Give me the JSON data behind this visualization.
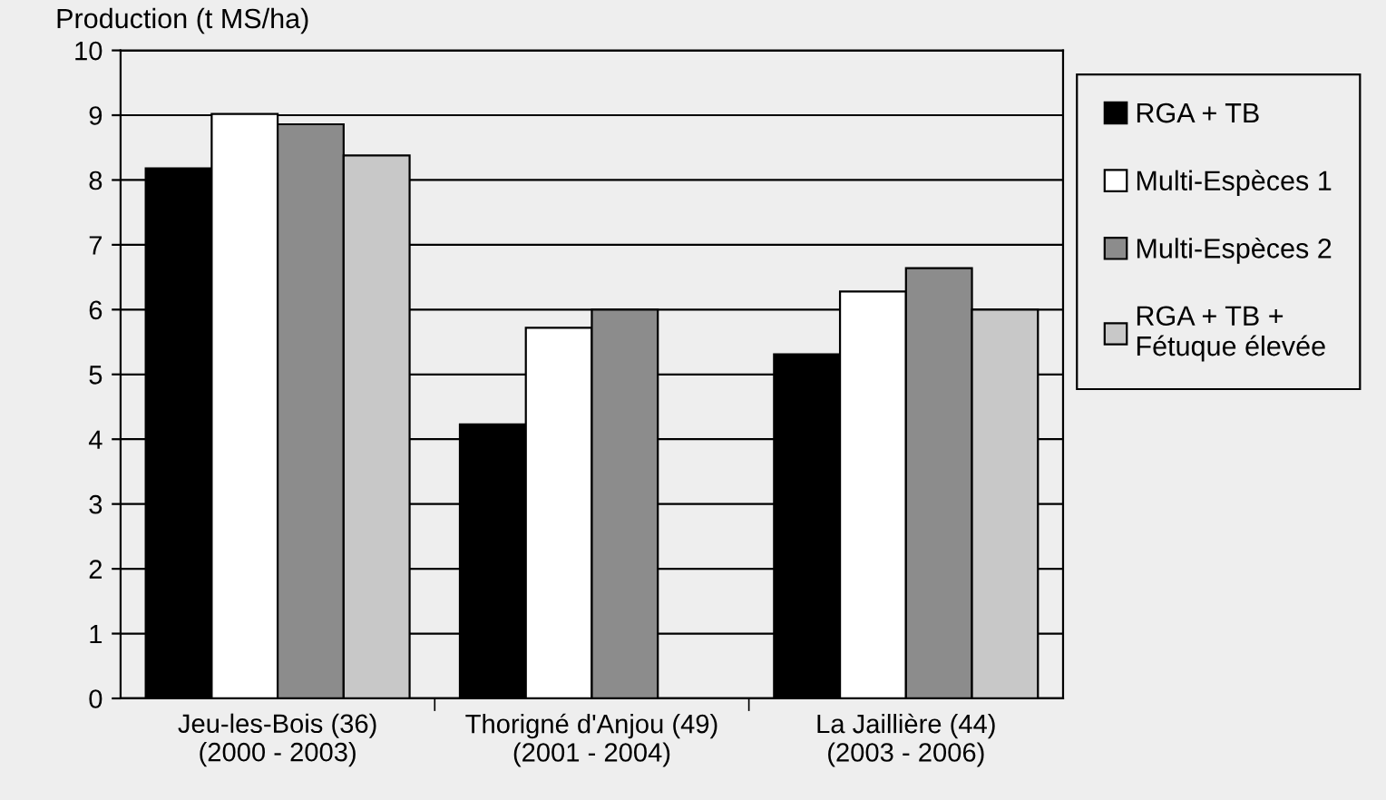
{
  "chart_data": {
    "type": "bar",
    "ylabel": "Production (t MS/ha)",
    "categories": [
      "Jeu-les-Bois (36)\n(2000 - 2003)",
      "Thorigné d'Anjou (49)\n(2001 - 2004)",
      "La Jaillière (44)\n(2003 - 2006)"
    ],
    "series": [
      {
        "name": "RGA + TB",
        "color": "#000000",
        "values": [
          8.18,
          4.23,
          5.31
        ]
      },
      {
        "name": "Multi-Espèces 1",
        "color": "#ffffff",
        "values": [
          9.02,
          5.72,
          6.28
        ]
      },
      {
        "name": "Multi-Espèces 2",
        "color": "#8c8c8c",
        "values": [
          8.86,
          6.0,
          6.64
        ]
      },
      {
        "name": "RGA + TB +\nFétuque élevée",
        "color": "#c8c8c8",
        "values": [
          8.38,
          null,
          6.0
        ]
      }
    ],
    "ylim": [
      0,
      10
    ],
    "yticks": [
      0,
      1,
      2,
      3,
      4,
      5,
      6,
      7,
      8,
      9,
      10
    ],
    "grid": "y",
    "legend": "right"
  }
}
